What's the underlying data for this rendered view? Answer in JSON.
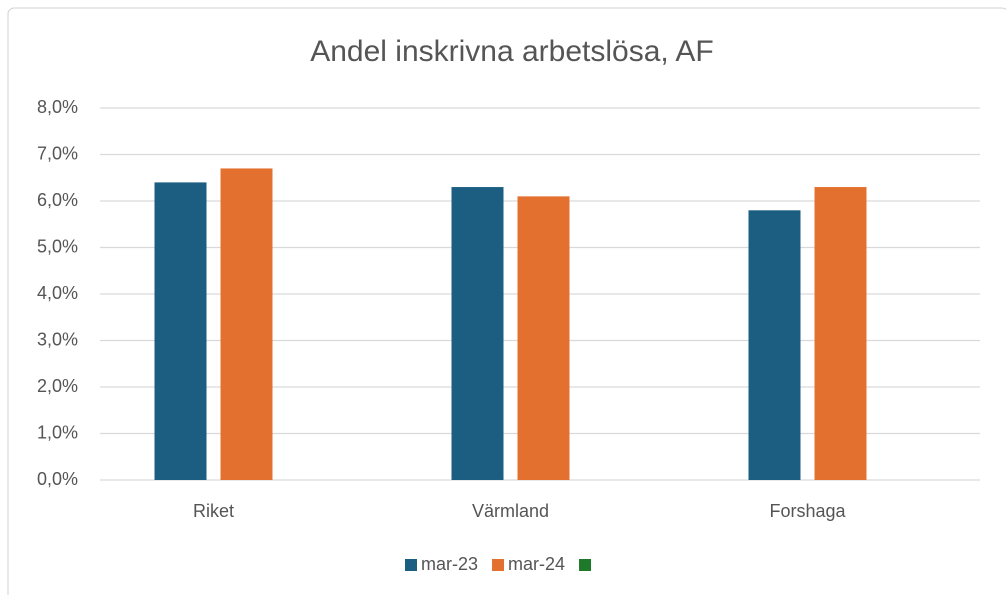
{
  "chart_data": {
    "type": "bar",
    "title": "Andel inskrivna arbetslösa, AF",
    "categories": [
      "Riket",
      "Värmland",
      "Forshaga"
    ],
    "series": [
      {
        "name": "mar-23",
        "color": "#1b5e82",
        "values": [
          6.4,
          6.3,
          5.8
        ]
      },
      {
        "name": "mar-24",
        "color": "#e4702f",
        "values": [
          6.7,
          6.1,
          6.3
        ]
      },
      {
        "name": null,
        "color": "#1e7a2a",
        "values": [
          null,
          null,
          null
        ]
      }
    ],
    "ylim": [
      0,
      8
    ],
    "yticks": [
      {
        "value": 0,
        "label": "0,0%"
      },
      {
        "value": 1,
        "label": "1,0%"
      },
      {
        "value": 2,
        "label": "2,0%"
      },
      {
        "value": 3,
        "label": "3,0%"
      },
      {
        "value": 4,
        "label": "4,0%"
      },
      {
        "value": 5,
        "label": "5,0%"
      },
      {
        "value": 6,
        "label": "6,0%"
      },
      {
        "value": 7,
        "label": "7,0%"
      },
      {
        "value": 8,
        "label": "8,0%"
      }
    ],
    "grid": true,
    "legend": "bottom"
  }
}
